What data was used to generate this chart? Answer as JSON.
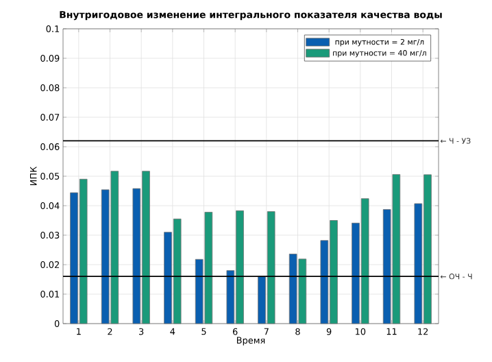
{
  "chart_data": {
    "type": "bar",
    "title": "Внутригодовое изменение интегрального показателя качества воды",
    "xlabel": "Время",
    "ylabel": "ИПК",
    "categories": [
      "1",
      "2",
      "3",
      "4",
      "5",
      "6",
      "7",
      "8",
      "9",
      "10",
      "11",
      "12"
    ],
    "series": [
      {
        "name": "при мутности = 2 мг/л",
        "color": "#0a5fb0",
        "values": [
          0.0444,
          0.0454,
          0.0458,
          0.031,
          0.0218,
          0.018,
          0.016,
          0.0236,
          0.0282,
          0.0341,
          0.0387,
          0.0407
        ]
      },
      {
        "name": "при мутности = 40 мг/л",
        "color": "#1a9a7a",
        "values": [
          0.049,
          0.0517,
          0.0517,
          0.0355,
          0.0378,
          0.0383,
          0.038,
          0.0219,
          0.035,
          0.0424,
          0.0506,
          0.0505
        ]
      }
    ],
    "ylim": [
      0,
      0.1
    ],
    "yticks": [
      0,
      0.01,
      0.02,
      0.03,
      0.04,
      0.05,
      0.06,
      0.07,
      0.08,
      0.09,
      0.1
    ],
    "ref_lines": [
      {
        "axis": "y",
        "value": 0.062,
        "label": "← Ч - УЗ",
        "color": "#000000"
      },
      {
        "axis": "y",
        "value": 0.016,
        "label": "← ОЧ - Ч",
        "color": "#000000"
      }
    ],
    "grid": true,
    "legend": "top right"
  }
}
